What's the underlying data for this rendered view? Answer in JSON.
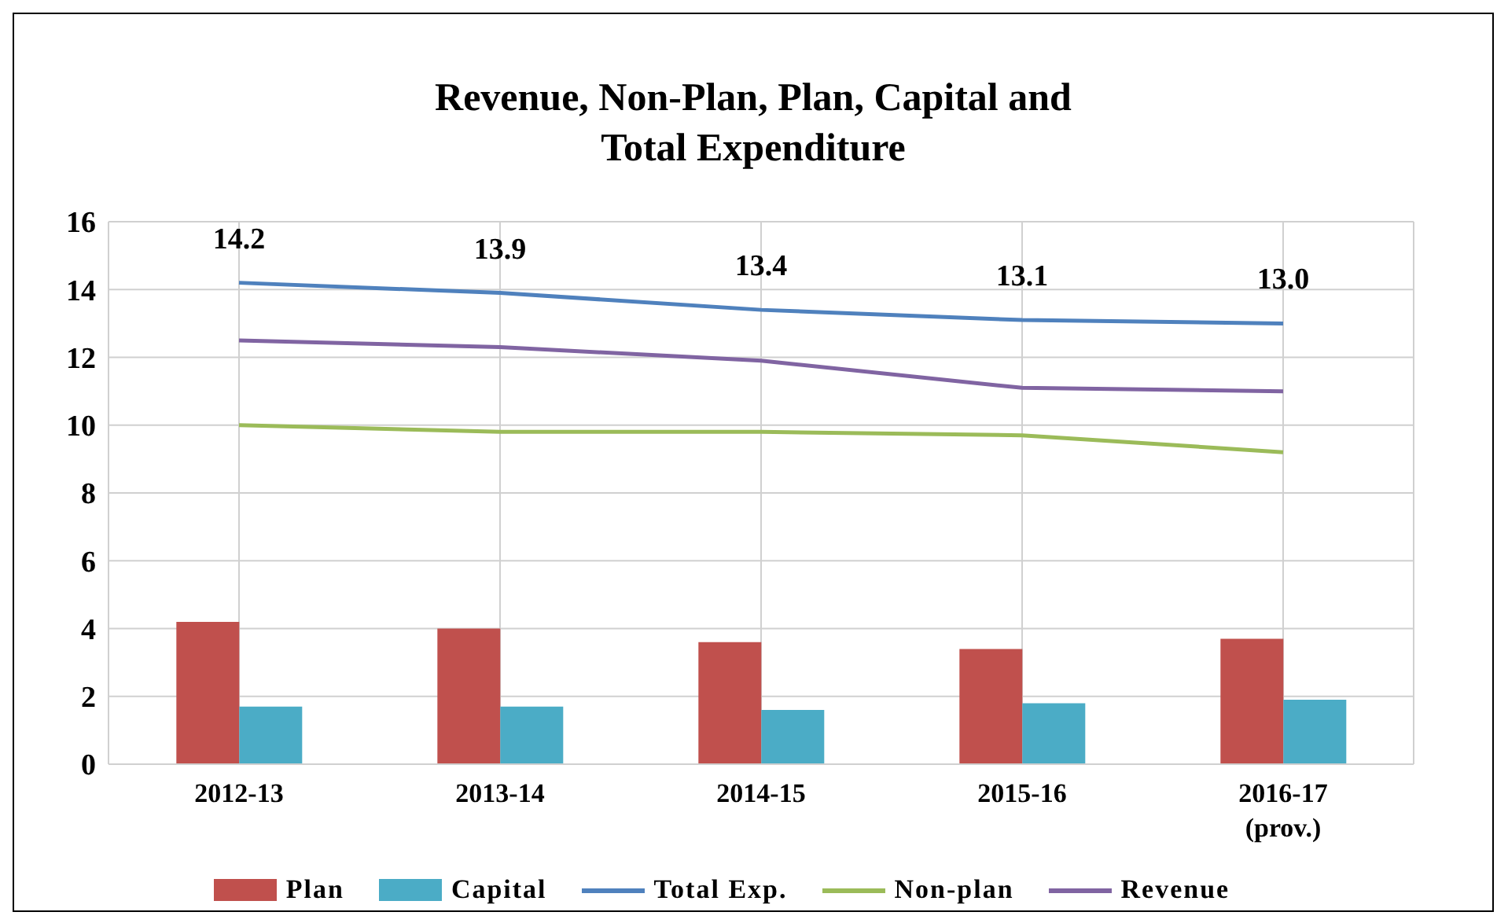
{
  "chart_data": {
    "type": "bar",
    "title": "Revenue, Non-Plan, Plan, Capital and\nTotal Expenditure",
    "categories": [
      "2012-13",
      "2013-14",
      "2014-15",
      "2015-16",
      "2016-17\n(prov.)"
    ],
    "series": [
      {
        "name": "Plan",
        "color": "#c0504d",
        "values": [
          4.2,
          4.0,
          3.6,
          3.4,
          3.7
        ]
      },
      {
        "name": "Capital",
        "color": "#4bacc6",
        "values": [
          1.7,
          1.7,
          1.6,
          1.8,
          1.9
        ]
      },
      {
        "name": "Total Exp.",
        "type": "line",
        "color": "#4f81bd",
        "values": [
          14.2,
          13.9,
          13.4,
          13.1,
          13.0
        ],
        "value_labels": [
          "14.2",
          "13.9",
          "13.4",
          "13.1",
          "13.0"
        ]
      },
      {
        "name": "Non-plan",
        "type": "line",
        "color": "#9bbb59",
        "values": [
          10.0,
          9.8,
          9.8,
          9.7,
          9.2
        ]
      },
      {
        "name": "Revenue",
        "type": "line",
        "color": "#8064a2",
        "values": [
          12.5,
          12.3,
          11.9,
          11.1,
          11.0
        ]
      }
    ],
    "ylim": [
      0,
      16
    ],
    "yticks": [
      0,
      2,
      4,
      6,
      8,
      10,
      12,
      14,
      16
    ],
    "grid": true,
    "legend": "bottom",
    "marker": "none"
  }
}
